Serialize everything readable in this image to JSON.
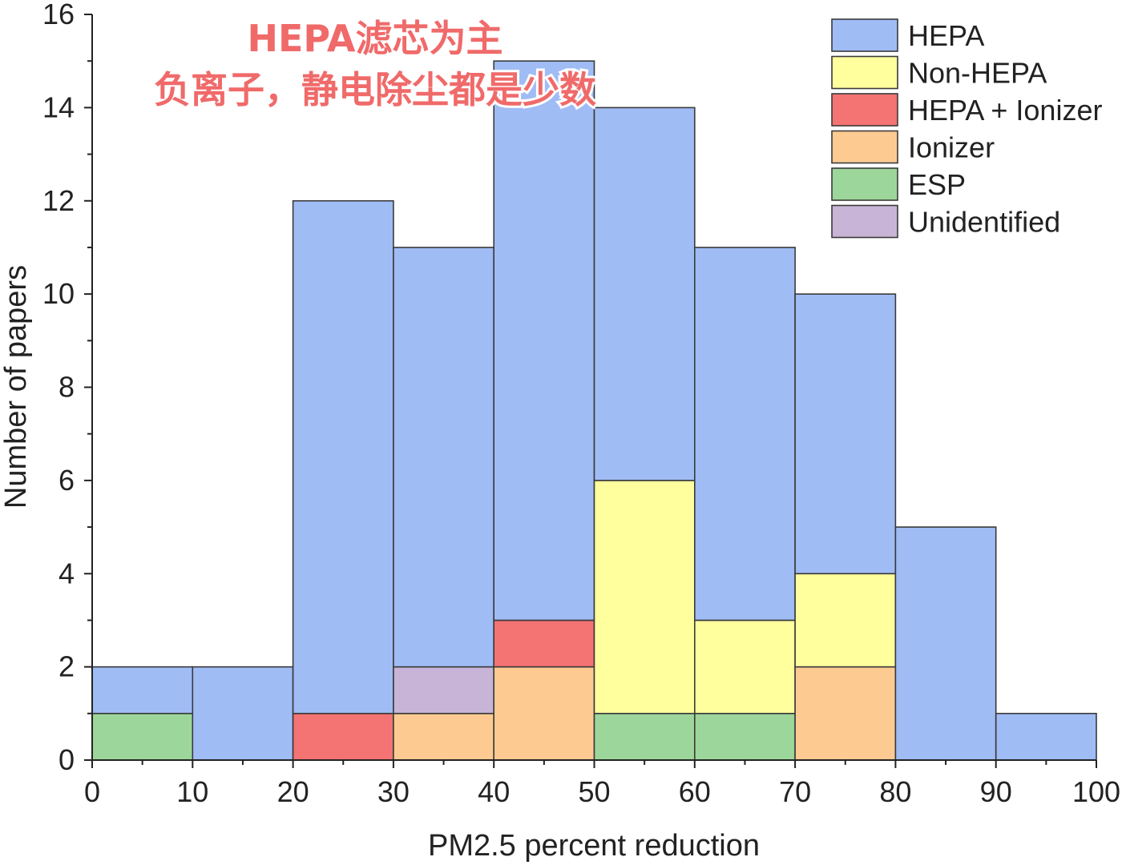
{
  "overlay": {
    "line1": "HEPA滤芯为主",
    "line2": "负离子，静电除尘都是少数"
  },
  "chart_data": {
    "type": "bar",
    "stacked": true,
    "title": "",
    "xlabel": "PM2.5 percent reduction",
    "ylabel": "Number of papers",
    "xlim": [
      0,
      100
    ],
    "ylim": [
      0,
      16
    ],
    "x_ticks": [
      "0",
      "10",
      "20",
      "30",
      "40",
      "50",
      "60",
      "70",
      "80",
      "90",
      "100"
    ],
    "y_ticks": [
      "0",
      "2",
      "4",
      "6",
      "8",
      "10",
      "12",
      "14",
      "16"
    ],
    "bins": [
      [
        0,
        10
      ],
      [
        10,
        20
      ],
      [
        20,
        30
      ],
      [
        30,
        40
      ],
      [
        40,
        50
      ],
      [
        50,
        60
      ],
      [
        60,
        70
      ],
      [
        70,
        80
      ],
      [
        80,
        90
      ],
      [
        90,
        100
      ]
    ],
    "series": [
      {
        "name": "ESP",
        "color": "#9dd69a",
        "values": [
          1,
          0,
          0,
          0,
          0,
          1,
          1,
          0,
          0,
          0
        ]
      },
      {
        "name": "Ionizer",
        "color": "#fdcb92",
        "values": [
          0,
          0,
          0,
          1,
          2,
          0,
          0,
          2,
          0,
          0
        ]
      },
      {
        "name": "Unidentified",
        "color": "#c8b4d6",
        "values": [
          0,
          0,
          0,
          1,
          0,
          0,
          0,
          0,
          0,
          0
        ]
      },
      {
        "name": "HEPA + Ionizer",
        "color": "#f47373",
        "values": [
          0,
          0,
          1,
          0,
          1,
          0,
          0,
          0,
          0,
          0
        ]
      },
      {
        "name": "Non-HEPA",
        "color": "#ffff9e",
        "values": [
          0,
          0,
          0,
          0,
          0,
          5,
          2,
          2,
          0,
          0
        ]
      },
      {
        "name": "HEPA",
        "color": "#a0bcf5",
        "values": [
          1,
          2,
          11,
          9,
          12,
          8,
          8,
          6,
          5,
          1
        ]
      }
    ],
    "legend": {
      "position": "top-right",
      "order": [
        "HEPA",
        "Non-HEPA",
        "HEPA + Ionizer",
        "Ionizer",
        "ESP",
        "Unidentified"
      ]
    },
    "grid": false
  }
}
